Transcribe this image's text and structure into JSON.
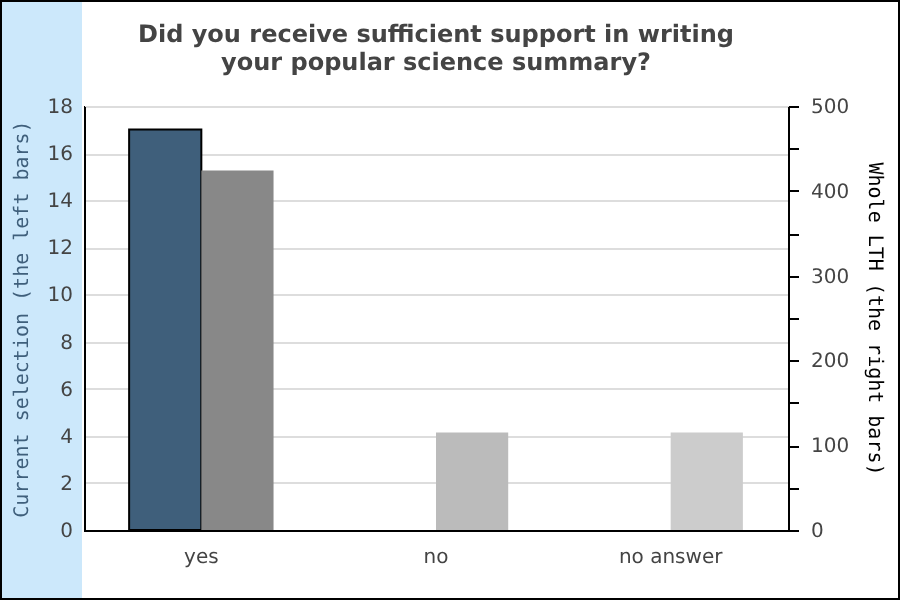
{
  "chart_data": {
    "type": "bar",
    "title": "Did you receive sufficient support in writing\nyour popular science summary?",
    "ylabel": "Current selection (the left bars)",
    "y2label": "Whole LTH (the right bars)",
    "categories": [
      "yes",
      "no",
      "no answer"
    ],
    "series": [
      {
        "color": "#3f5f7b",
        "values": [
          17,
          null,
          null
        ]
      },
      {
        "axis": "y2",
        "colors": [
          "#888888",
          "#bbbbbb",
          "#cccccc"
        ],
        "values": [
          424,
          115,
          115
        ]
      }
    ],
    "ylim": [
      0,
      18
    ],
    "yticks": [
      0,
      2,
      4,
      6,
      8,
      10,
      12,
      14,
      16,
      18
    ],
    "y2lim": [
      0,
      500
    ],
    "y2ticks": [
      0,
      {
        "value": 50,
        "label": null
      },
      100,
      {
        "value": 150,
        "label": null
      },
      200,
      {
        "value": 250,
        "label": null
      },
      300,
      {
        "value": 350,
        "label": null
      },
      400,
      {
        "value": 450,
        "label": null
      },
      500
    ],
    "grid": "y"
  }
}
